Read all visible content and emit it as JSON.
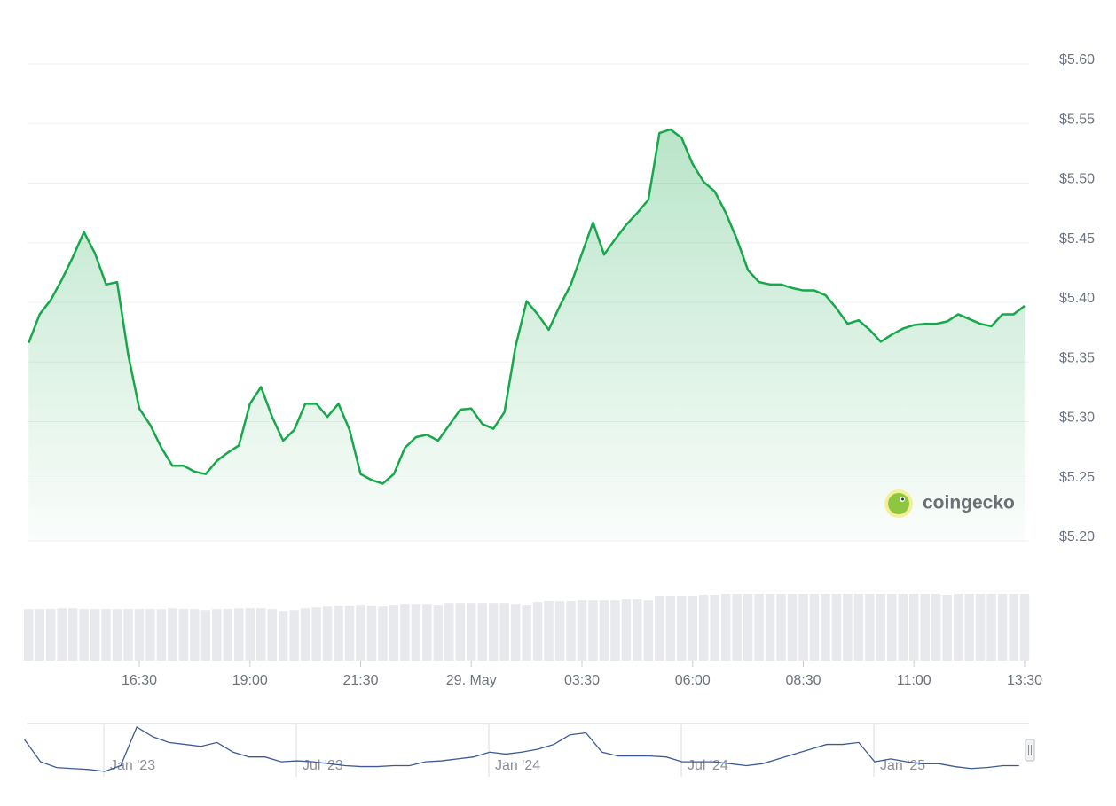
{
  "chart_data": [
    {
      "type": "line",
      "color": "#16a84a",
      "categories": [
        null,
        null,
        null,
        null,
        null,
        null,
        null,
        null,
        null,
        null,
        "16:30",
        null,
        null,
        null,
        null,
        null,
        null,
        null,
        null,
        null,
        "19:00",
        null,
        null,
        null,
        null,
        null,
        null,
        null,
        null,
        null,
        "21:30",
        null,
        null,
        null,
        null,
        null,
        null,
        null,
        null,
        null,
        "29. May",
        null,
        null,
        null,
        null,
        null,
        null,
        null,
        null,
        null,
        "03:30",
        null,
        null,
        null,
        null,
        null,
        null,
        null,
        null,
        null,
        "06:00",
        null,
        null,
        null,
        null,
        null,
        null,
        null,
        null,
        null,
        "08:30",
        null,
        null,
        null,
        null,
        null,
        null,
        null,
        null,
        null,
        "11:00",
        null,
        null,
        null,
        null,
        null,
        null,
        null,
        null,
        null,
        "13:30"
      ],
      "values": [
        5.366,
        5.39,
        5.402,
        5.419,
        5.438,
        5.459,
        5.441,
        5.415,
        5.417,
        5.356,
        5.311,
        5.297,
        5.278,
        5.263,
        5.263,
        5.258,
        5.256,
        5.267,
        5.274,
        5.28,
        5.315,
        5.329,
        5.304,
        5.284,
        5.293,
        5.315,
        5.315,
        5.304,
        5.315,
        5.293,
        5.256,
        5.251,
        5.248,
        5.256,
        5.278,
        5.287,
        5.289,
        5.284,
        5.297,
        5.31,
        5.311,
        5.298,
        5.294,
        5.308,
        5.363,
        5.401,
        5.39,
        5.377,
        5.397,
        5.415,
        5.441,
        5.467,
        5.44,
        5.453,
        5.465,
        5.475,
        5.486,
        5.542,
        5.545,
        5.538,
        5.516,
        5.501,
        5.493,
        5.475,
        5.453,
        5.427,
        5.417,
        5.415,
        5.415,
        5.412,
        5.41,
        5.41,
        5.406,
        5.395,
        5.382,
        5.385,
        5.377,
        5.367,
        5.373,
        5.378,
        5.381,
        5.382,
        5.382,
        5.384,
        5.39,
        5.386,
        5.382,
        5.38,
        5.39,
        5.39,
        5.397
      ],
      "ylim": [
        5.2,
        5.6
      ],
      "yticks": [
        {
          "value": 5.2,
          "label": "$5.20"
        },
        {
          "value": 5.25,
          "label": "$5.25"
        },
        {
          "value": 5.3,
          "label": "$5.30"
        },
        {
          "value": 5.35,
          "label": "$5.35"
        },
        {
          "value": 5.4,
          "label": "$5.40"
        },
        {
          "value": 5.45,
          "label": "$5.45"
        },
        {
          "value": 5.5,
          "label": "$5.50"
        },
        {
          "value": 5.55,
          "label": "$5.55"
        },
        {
          "value": 5.6,
          "label": "$5.60"
        }
      ],
      "grid": true,
      "volume": {
        "color": "#e8e9ec",
        "values": [
          57,
          57,
          57,
          58,
          58,
          57,
          57,
          57,
          57,
          57,
          57,
          57,
          57,
          58,
          57,
          57,
          56,
          57,
          57,
          58,
          58,
          58,
          57,
          55,
          56,
          58,
          59,
          60,
          61,
          61,
          62,
          61,
          60,
          62,
          63,
          63,
          63,
          62,
          64,
          64,
          64,
          64,
          64,
          64,
          63,
          62,
          65,
          66,
          66,
          66,
          67,
          67,
          67,
          67,
          68,
          68,
          67,
          72,
          72,
          72,
          72,
          73,
          73,
          74,
          74,
          74,
          74,
          74,
          74,
          74,
          74,
          74,
          74,
          74,
          74,
          74,
          74,
          74,
          74,
          74,
          74,
          74,
          74,
          73,
          74,
          74,
          74,
          74,
          74,
          74,
          74
        ]
      }
    },
    {
      "type": "navigator",
      "color": "#3c5a9a",
      "categories": [
        null,
        null,
        null,
        null,
        null,
        "Jan '23",
        null,
        null,
        null,
        null,
        null,
        null,
        null,
        null,
        null,
        null,
        null,
        "Jul '23",
        null,
        null,
        null,
        null,
        null,
        null,
        null,
        null,
        null,
        null,
        null,
        "Jan '24",
        null,
        null,
        null,
        null,
        null,
        null,
        null,
        null,
        null,
        null,
        null,
        "Jul '24",
        null,
        null,
        null,
        null,
        null,
        null,
        null,
        null,
        null,
        null,
        null,
        "Jan '25",
        null,
        null,
        null,
        null,
        null,
        null,
        null,
        null,
        null
      ],
      "values": [
        45,
        22,
        16,
        15,
        14,
        12,
        18,
        58,
        48,
        42,
        40,
        38,
        42,
        32,
        27,
        27,
        22,
        23,
        22,
        20,
        18,
        17,
        17,
        18,
        18,
        22,
        23,
        25,
        27,
        32,
        30,
        32,
        35,
        40,
        50,
        52,
        32,
        28,
        28,
        28,
        27,
        22,
        22,
        22,
        20,
        18,
        20,
        25,
        30,
        35,
        40,
        40,
        42,
        22,
        25,
        22,
        20,
        20,
        17,
        15,
        16,
        18,
        18
      ]
    }
  ],
  "watermark": "coingecko"
}
